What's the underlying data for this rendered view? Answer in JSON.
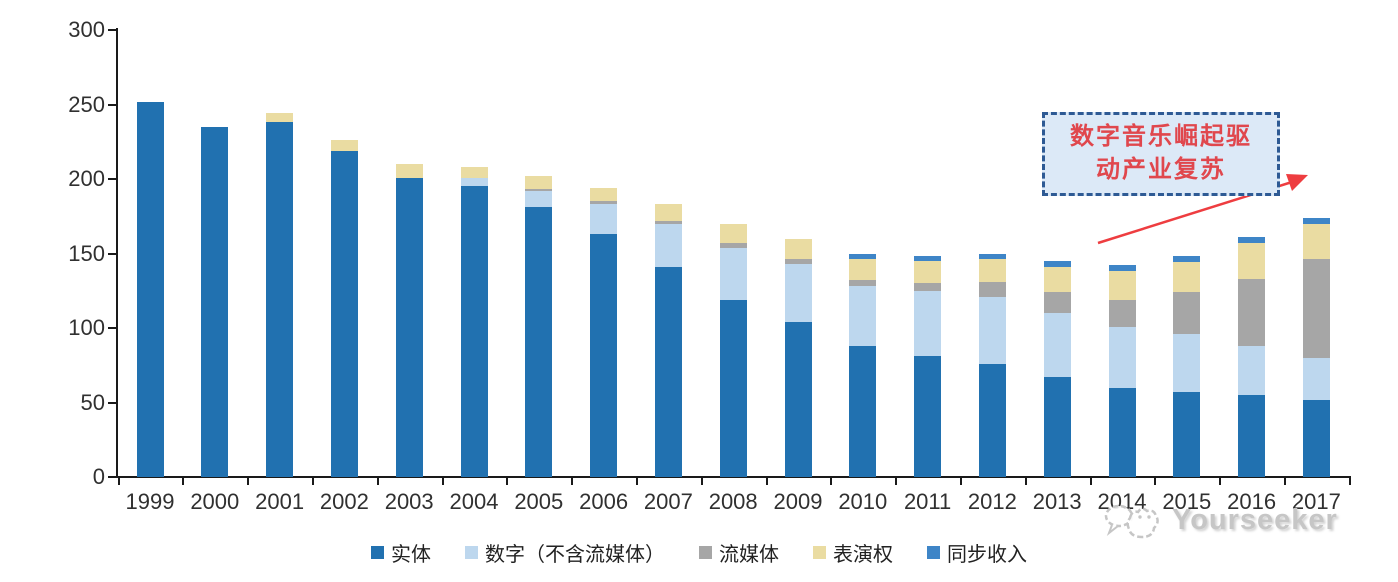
{
  "chart_data": {
    "type": "bar",
    "stacked": true,
    "categories": [
      "1999",
      "2000",
      "2001",
      "2002",
      "2003",
      "2004",
      "2005",
      "2006",
      "2007",
      "2008",
      "2009",
      "2010",
      "2011",
      "2012",
      "2013",
      "2014",
      "2015",
      "2016",
      "2017"
    ],
    "series": [
      {
        "name": "实体",
        "color": "#2171b0",
        "values": [
          252,
          235,
          238,
          219,
          201,
          195,
          181,
          163,
          141,
          119,
          104,
          88,
          81,
          76,
          67,
          60,
          57,
          55,
          52
        ]
      },
      {
        "name": "数字（不含流媒体）",
        "color": "#bdd7ee",
        "values": [
          0,
          0,
          0,
          0,
          0,
          6,
          11,
          20,
          29,
          35,
          39,
          40,
          44,
          45,
          43,
          41,
          39,
          33,
          28
        ]
      },
      {
        "name": "流媒体",
        "color": "#a6a6a6",
        "values": [
          0,
          0,
          0,
          0,
          0,
          0,
          1,
          2,
          2,
          3,
          3,
          4,
          5,
          10,
          14,
          18,
          28,
          45,
          66
        ]
      },
      {
        "name": "表演权",
        "color": "#eadca2",
        "values": [
          0,
          0,
          6,
          7,
          9,
          7,
          9,
          9,
          11,
          13,
          14,
          14,
          15,
          15,
          17,
          19,
          20,
          24,
          24
        ]
      },
      {
        "name": "同步收入",
        "color": "#3e85c7",
        "values": [
          0,
          0,
          0,
          0,
          0,
          0,
          0,
          0,
          0,
          0,
          0,
          4,
          3,
          4,
          4,
          4,
          4,
          4,
          4
        ]
      }
    ],
    "ylim": [
      0,
      300
    ],
    "yticks": [
      0,
      50,
      100,
      150,
      200,
      250,
      300
    ],
    "grid": false,
    "legend_position": "bottom"
  },
  "annotation": {
    "line1": "数字音乐崛起驱",
    "line2": "动产业复苏",
    "border_color": "#2e5a94",
    "fill_color": "#dce9f7",
    "text_color": "#e0474d",
    "arrow_color": "#ee3d40"
  },
  "watermark": {
    "text": "Yourseeker"
  }
}
